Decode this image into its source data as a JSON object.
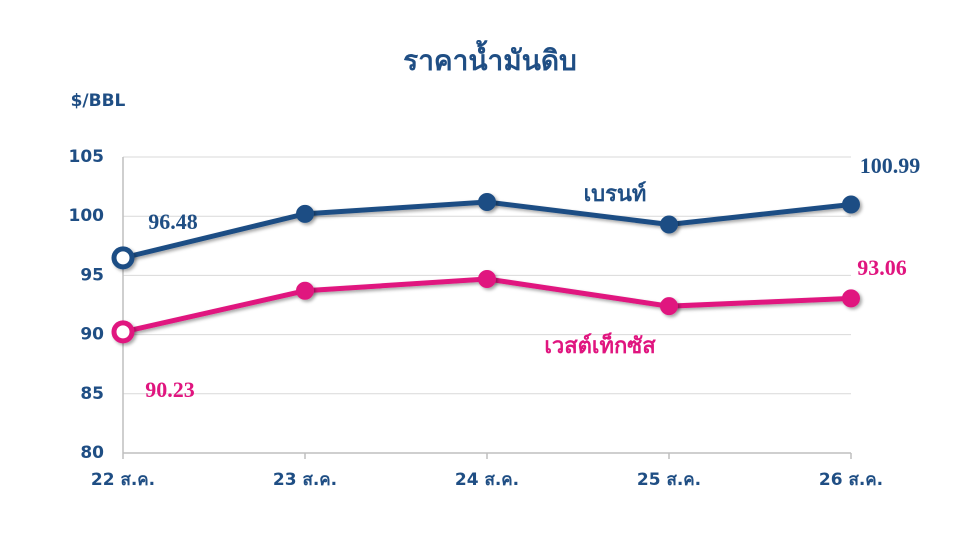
{
  "chart_data": {
    "type": "line",
    "title": "ราคาน้ำมันดิบ",
    "y_label": "$/BBL",
    "categories": [
      "22 ส.ค.",
      "23 ส.ค.",
      "24 ส.ค.",
      "25 ส.ค.",
      "26 ส.ค."
    ],
    "series": [
      {
        "name": "เบรนท์",
        "color": "#1f4e84",
        "values": [
          96.48,
          100.2,
          101.2,
          99.3,
          100.99
        ]
      },
      {
        "name": "เวสต์เท็กซัส",
        "color": "#e0157f",
        "values": [
          90.23,
          93.7,
          94.7,
          92.4,
          93.06
        ]
      }
    ],
    "ylim": [
      80,
      105
    ],
    "yticks": [
      80,
      85,
      90,
      95,
      100,
      105
    ],
    "grid": true
  }
}
